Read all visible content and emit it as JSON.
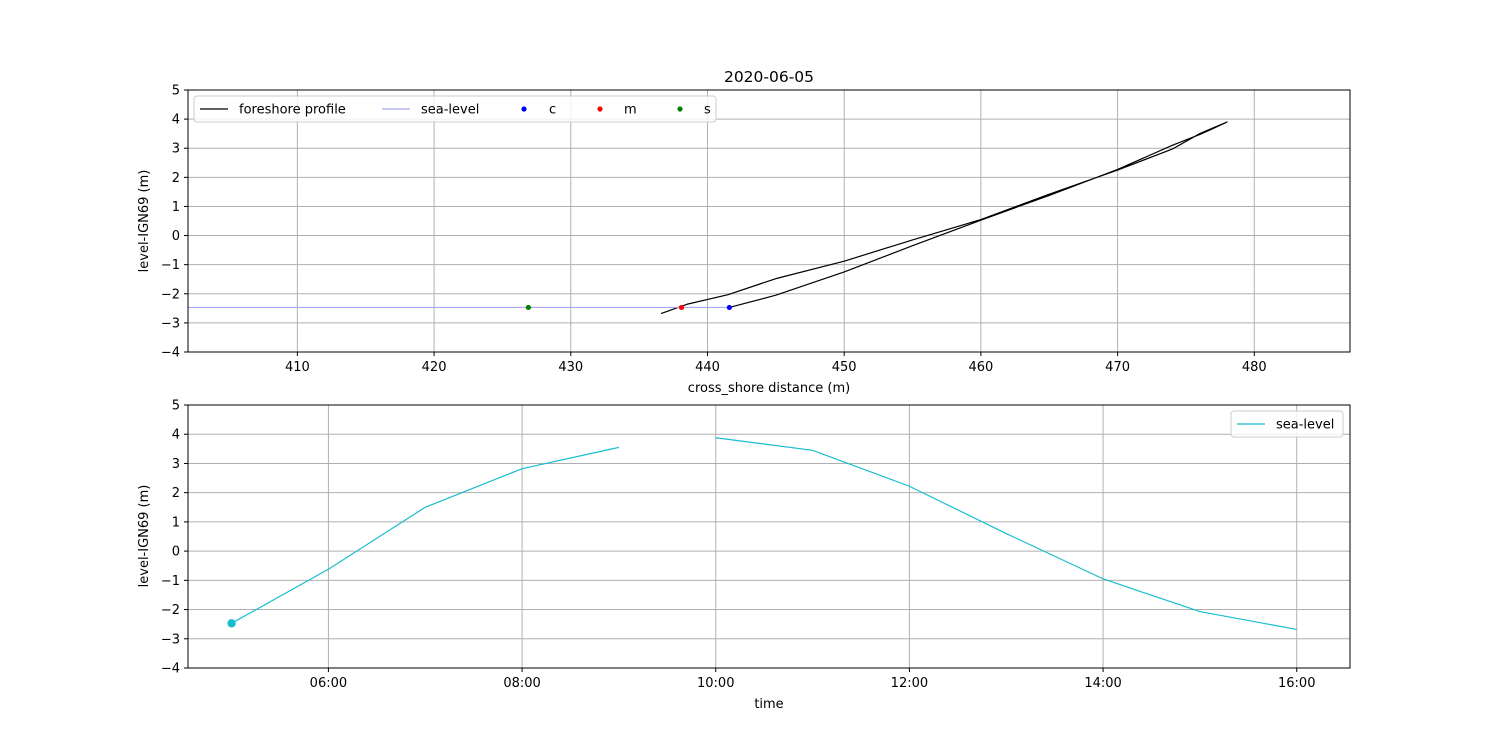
{
  "chart_data": [
    {
      "type": "line",
      "title": "2020-06-05",
      "xlabel": "cross_shore distance (m)",
      "ylabel": "level-IGN69 (m)",
      "xlim": [
        402,
        487
      ],
      "ylim": [
        -4,
        5
      ],
      "grid": true,
      "legend_placement": "top-left",
      "xticks": [
        410,
        420,
        430,
        440,
        450,
        460,
        470,
        480
      ],
      "yticks": [
        -4,
        -3,
        -2,
        -1,
        0,
        1,
        2,
        3,
        4,
        5
      ],
      "series": [
        {
          "name": "foreshore profile",
          "color": "#000000",
          "kind": "line",
          "x": [
            436.6,
            438.5,
            441.5,
            445,
            450,
            455,
            460,
            465,
            470,
            474,
            476,
            477,
            478,
            477,
            476,
            474,
            470,
            465,
            460,
            455,
            450,
            445,
            441.6
          ],
          "y": [
            -2.68,
            -2.36,
            -2.03,
            -1.48,
            -0.88,
            -0.15,
            0.55,
            1.42,
            2.25,
            2.97,
            3.5,
            3.7,
            3.9,
            3.68,
            3.47,
            3.1,
            2.27,
            1.38,
            0.53,
            -0.35,
            -1.25,
            -2.05,
            -2.47
          ]
        },
        {
          "name": "sea-level",
          "color": "#a9a9f5",
          "kind": "line",
          "x": [
            402,
            441.5
          ],
          "y": [
            -2.47,
            -2.47
          ]
        },
        {
          "name": "c",
          "color": "#0000ff",
          "kind": "point",
          "x": [
            441.6
          ],
          "y": [
            -2.47
          ]
        },
        {
          "name": "m",
          "color": "#ff0000",
          "kind": "point",
          "x": [
            438.1
          ],
          "y": [
            -2.47
          ]
        },
        {
          "name": "s",
          "color": "#008000",
          "kind": "point",
          "x": [
            426.9
          ],
          "y": [
            -2.47
          ]
        }
      ]
    },
    {
      "type": "line",
      "xlabel": "time",
      "ylabel": "level-IGN69 (m)",
      "xlim": [
        4.55,
        16.55
      ],
      "ylim": [
        -4,
        5
      ],
      "grid": true,
      "legend_placement": "top-right",
      "xticks": [
        6,
        8,
        10,
        12,
        14,
        16
      ],
      "xtick_labels": [
        "06:00",
        "08:00",
        "10:00",
        "12:00",
        "14:00",
        "16:00"
      ],
      "yticks": [
        -4,
        -3,
        -2,
        -1,
        0,
        1,
        2,
        3,
        4,
        5
      ],
      "series": [
        {
          "name": "sea-level",
          "color": "#17becf",
          "segments": [
            {
              "x": [
                5,
                6,
                7,
                8,
                9
              ],
              "y": [
                -2.47,
                -0.62,
                1.5,
                2.82,
                3.55
              ]
            },
            {
              "x": [
                10,
                11,
                12,
                13,
                14,
                15,
                16
              ],
              "y": [
                3.88,
                3.45,
                2.22,
                0.6,
                -0.95,
                -2.07,
                -2.68
              ]
            }
          ],
          "marker": {
            "x": 5,
            "y": -2.47
          }
        }
      ]
    }
  ]
}
